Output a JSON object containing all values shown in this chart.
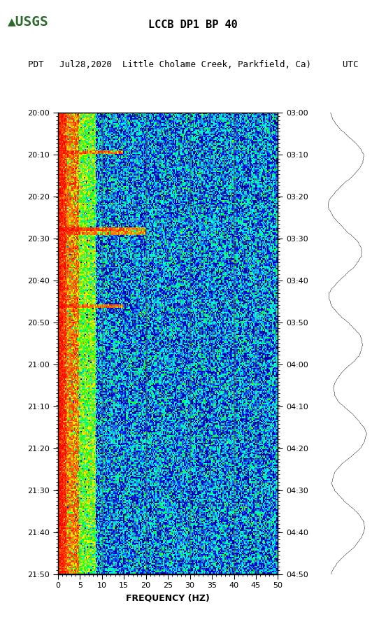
{
  "title_line1": "LCCB DP1 BP 40",
  "title_line2": "PDT   Jul28,2020  Little Cholame Creek, Parkfield, Ca)      UTC",
  "xlabel": "FREQUENCY (HZ)",
  "ylabel_left_times": [
    "20:00",
    "20:10",
    "20:20",
    "20:30",
    "20:40",
    "20:50",
    "21:00",
    "21:10",
    "21:20",
    "21:30",
    "21:40",
    "21:50"
  ],
  "ylabel_right_times": [
    "03:00",
    "03:10",
    "03:20",
    "03:30",
    "03:40",
    "03:50",
    "04:00",
    "04:10",
    "04:20",
    "04:30",
    "04:40",
    "04:50"
  ],
  "freq_min": 0,
  "freq_max": 50,
  "freq_ticks": [
    0,
    5,
    10,
    15,
    20,
    25,
    30,
    35,
    40,
    45,
    50
  ],
  "vertical_lines_freq": [
    10,
    20,
    30,
    40
  ],
  "n_time_steps": 360,
  "n_freq_bins": 200,
  "low_energy_color": "#00008B",
  "high_energy_color": "#FF0000",
  "waveform_color": "#000000",
  "background_color": "#ffffff",
  "usgs_green": "#2D6B2D",
  "fig_width": 5.52,
  "fig_height": 8.92
}
